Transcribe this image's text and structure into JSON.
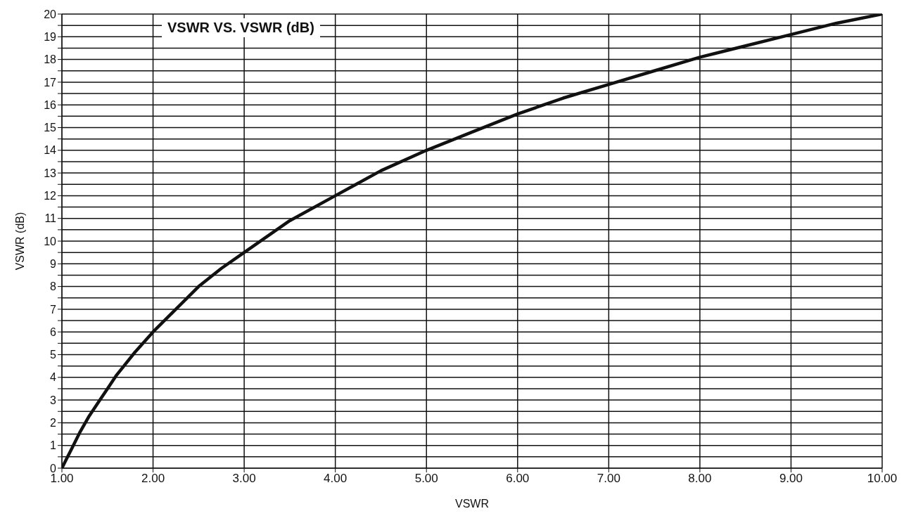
{
  "chart_data": {
    "type": "line",
    "title": "VSWR VS. VSWR (dB)",
    "xlabel": "VSWR",
    "ylabel": "VSWR (dB)",
    "x": [
      1.0,
      1.05,
      1.1,
      1.2,
      1.3,
      1.4,
      1.5,
      1.6,
      1.8,
      2,
      2.25,
      2.5,
      2.75,
      3,
      3.5,
      4,
      4.5,
      5,
      5.5,
      6,
      6.5,
      7,
      7.5,
      8,
      8.5,
      9,
      9.5,
      10
    ],
    "series": [
      {
        "color": "#111111",
        "values": [
          0,
          0.4,
          0.8,
          1.6,
          2.3,
          2.9,
          3.5,
          4.1,
          5.1,
          6.0,
          7.0,
          8.0,
          8.8,
          9.5,
          10.9,
          12.0,
          13.1,
          14.0,
          14.8,
          15.6,
          16.3,
          16.9,
          17.5,
          18.1,
          18.6,
          19.1,
          19.6,
          20
        ]
      }
    ],
    "xlim": [
      1,
      10
    ],
    "xticks": [
      {
        "value": 1,
        "label": "1.00"
      },
      {
        "value": 2,
        "label": "2.00"
      },
      {
        "value": 3,
        "label": "3.00"
      },
      {
        "value": 4,
        "label": "4.00"
      },
      {
        "value": 5,
        "label": "5.00"
      },
      {
        "value": 6,
        "label": "6.00"
      },
      {
        "value": 7,
        "label": "7.00"
      },
      {
        "value": 8,
        "label": "8.00"
      },
      {
        "value": 9,
        "label": "9.00"
      },
      {
        "value": 10,
        "label": "10.00"
      }
    ],
    "ylim": [
      0,
      20
    ],
    "yticks": [
      0,
      {
        "value": 0.5,
        "label": null
      },
      1,
      {
        "value": 1.5,
        "label": null
      },
      2,
      {
        "value": 2.5,
        "label": null
      },
      3,
      {
        "value": 3.5,
        "label": null
      },
      4,
      {
        "value": 4.5,
        "label": null
      },
      5,
      {
        "value": 5.5,
        "label": null
      },
      6,
      {
        "value": 6.5,
        "label": null
      },
      7,
      {
        "value": 7.5,
        "label": null
      },
      8,
      {
        "value": 8.5,
        "label": null
      },
      9,
      {
        "value": 9.5,
        "label": null
      },
      10,
      {
        "value": 10.5,
        "label": null
      },
      11,
      {
        "value": 11.5,
        "label": null
      },
      12,
      {
        "value": 12.5,
        "label": null
      },
      13,
      {
        "value": 13.5,
        "label": null
      },
      14,
      {
        "value": 14.5,
        "label": null
      },
      15,
      {
        "value": 15.5,
        "label": null
      },
      16,
      {
        "value": 16.5,
        "label": null
      },
      17,
      {
        "value": 17.5,
        "label": null
      },
      18,
      {
        "value": 18.5,
        "label": null
      },
      19,
      {
        "value": 19.5,
        "label": null
      },
      20
    ],
    "grid": true,
    "marker": "none",
    "line_style": "solid"
  }
}
